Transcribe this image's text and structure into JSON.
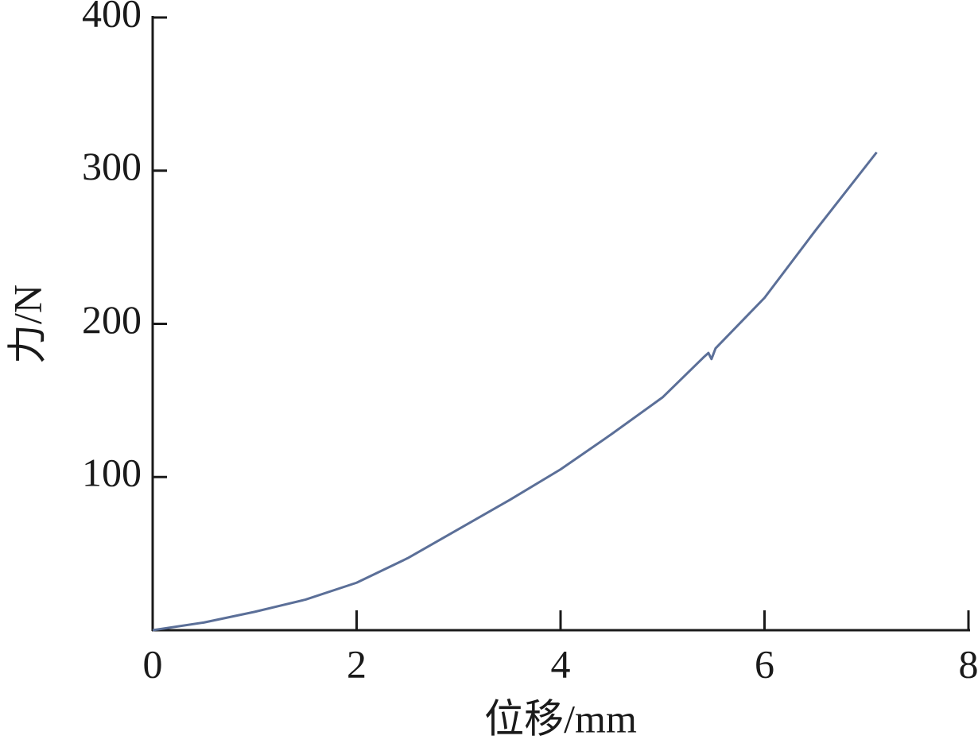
{
  "chart_data": {
    "type": "line",
    "x_label": "位移/mm",
    "y_label": "力/N",
    "x": [
      0,
      0.5,
      1,
      1.5,
      2,
      2.5,
      3,
      3.5,
      4,
      4.5,
      5,
      5.4,
      5.45,
      5.48,
      5.52,
      6,
      6.5,
      7.1
    ],
    "series": [
      {
        "name": "force",
        "color": "#5b6f98",
        "values": [
          0,
          5,
          12,
          20,
          31,
          47,
          66,
          85,
          105,
          128,
          152,
          178,
          181,
          177,
          184,
          217,
          261,
          312
        ]
      }
    ],
    "xlim": [
      0,
      8
    ],
    "xticks": [
      0,
      2,
      4,
      6,
      8
    ],
    "ylim": [
      0,
      400
    ],
    "yticks": [
      100,
      200,
      300,
      400
    ]
  }
}
